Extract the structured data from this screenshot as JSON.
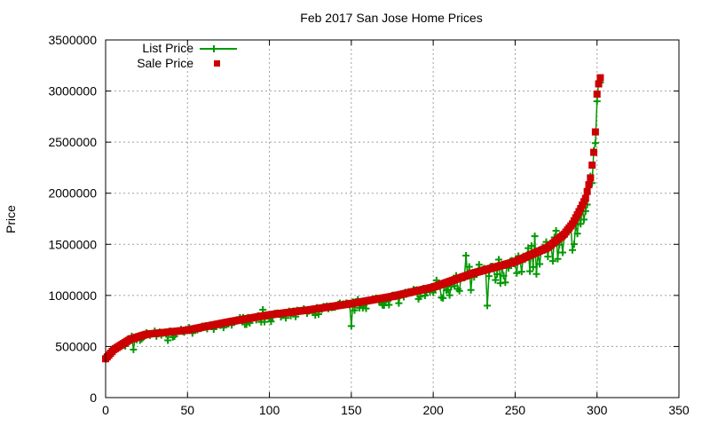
{
  "chart_data": {
    "type": "scatter",
    "title": "Feb 2017 San Jose Home Prices",
    "xlabel": "",
    "ylabel": "Price",
    "xlim": [
      0,
      350
    ],
    "ylim": [
      0,
      3500000
    ],
    "xticks": [
      0,
      50,
      100,
      150,
      200,
      250,
      300,
      350
    ],
    "yticks": [
      0,
      500000,
      1000000,
      1500000,
      2000000,
      2500000,
      3000000,
      3500000
    ],
    "grid": true,
    "legend_position": "top-left",
    "n_points": 303,
    "series": [
      {
        "name": "List Price",
        "style": "linespoints",
        "marker": "plus",
        "color": "#009900",
        "description": "Scattered around sale price; list prices mostly at or below sale price, with larger deviations in the 200-300 range",
        "sample_points": [
          [
            0,
            380000
          ],
          [
            16,
            600000
          ],
          [
            17,
            470000
          ],
          [
            30,
            650000
          ],
          [
            38,
            560000
          ],
          [
            50,
            660000
          ],
          [
            75,
            720000
          ],
          [
            96,
            860000
          ],
          [
            110,
            780000
          ],
          [
            150,
            700000
          ],
          [
            175,
            1000000
          ],
          [
            220,
            1390000
          ],
          [
            233,
            900000
          ],
          [
            240,
            1350000
          ],
          [
            262,
            1580000
          ],
          [
            270,
            1380000
          ],
          [
            290,
            1700000
          ],
          [
            297,
            2100000
          ],
          [
            299,
            2490000
          ],
          [
            300,
            2900000
          ]
        ]
      },
      {
        "name": "Sale Price",
        "style": "points",
        "marker": "square",
        "color": "#cc0000",
        "description": "Sorted ascending",
        "control_points": [
          [
            0,
            380000
          ],
          [
            5,
            470000
          ],
          [
            10,
            520000
          ],
          [
            15,
            570000
          ],
          [
            25,
            620000
          ],
          [
            50,
            660000
          ],
          [
            75,
            740000
          ],
          [
            100,
            810000
          ],
          [
            125,
            860000
          ],
          [
            150,
            920000
          ],
          [
            175,
            990000
          ],
          [
            200,
            1080000
          ],
          [
            225,
            1220000
          ],
          [
            250,
            1330000
          ],
          [
            270,
            1470000
          ],
          [
            280,
            1600000
          ],
          [
            285,
            1700000
          ],
          [
            290,
            1850000
          ],
          [
            293,
            1950000
          ],
          [
            296,
            2150000
          ],
          [
            298,
            2400000
          ],
          [
            299,
            2600000
          ],
          [
            300,
            2970000
          ],
          [
            301,
            3070000
          ],
          [
            302,
            3130000
          ]
        ]
      }
    ]
  },
  "legend": {
    "list_label": "List Price",
    "sale_label": "Sale Price"
  }
}
